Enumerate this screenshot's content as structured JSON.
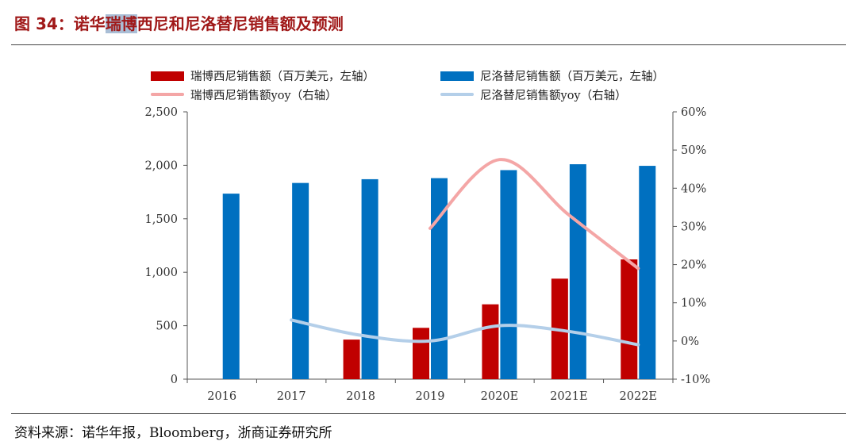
{
  "figure": {
    "title_prefix": "图 34：诺华",
    "title_highlight": "瑞博",
    "title_suffix": "西尼和尼洛替尼销售额及预测",
    "source": "资料来源：诺华年报，Bloomberg，浙商证券研究所"
  },
  "colors": {
    "ribociclib_bar": "#c00000",
    "nilotinib_bar": "#0070c0",
    "ribociclib_yoy": "#f4a6a6",
    "nilotinib_yoy": "#b4cfe9"
  },
  "chart_data": {
    "type": "bar",
    "categories": [
      "2016",
      "2017",
      "2018",
      "2019",
      "2020E",
      "2021E",
      "2022E"
    ],
    "series": [
      {
        "name": "瑞博西尼销售额（百万美元，左轴）",
        "axis": "left",
        "type": "bar",
        "values": [
          null,
          null,
          370,
          480,
          700,
          940,
          1120
        ]
      },
      {
        "name": "尼洛替尼销售额（百万美元，左轴）",
        "axis": "left",
        "type": "bar",
        "values": [
          1735,
          1835,
          1870,
          1880,
          1955,
          2010,
          1995
        ]
      },
      {
        "name": "瑞博西尼销售额yoy（右轴）",
        "axis": "right",
        "type": "line",
        "values": [
          null,
          null,
          null,
          29.5,
          47.5,
          33,
          19
        ]
      },
      {
        "name": "尼洛替尼销售额yoy（右轴）",
        "axis": "right",
        "type": "line",
        "values": [
          null,
          5.5,
          1.5,
          0,
          4,
          2.5,
          -1
        ]
      }
    ],
    "left_axis": {
      "ylim": [
        0,
        2500
      ],
      "ticks": [
        0,
        500,
        1000,
        1500,
        2000,
        2500
      ],
      "tick_labels": [
        "0",
        "500",
        "1,000",
        "1,500",
        "2,000",
        "2,500"
      ]
    },
    "right_axis": {
      "ylim": [
        -10,
        60
      ],
      "ticks": [
        -10,
        0,
        10,
        20,
        30,
        40,
        50,
        60
      ],
      "tick_labels": [
        "-10%",
        "0%",
        "10%",
        "20%",
        "30%",
        "40%",
        "50%",
        "60%"
      ]
    },
    "grid": false,
    "legend_position": "top"
  }
}
